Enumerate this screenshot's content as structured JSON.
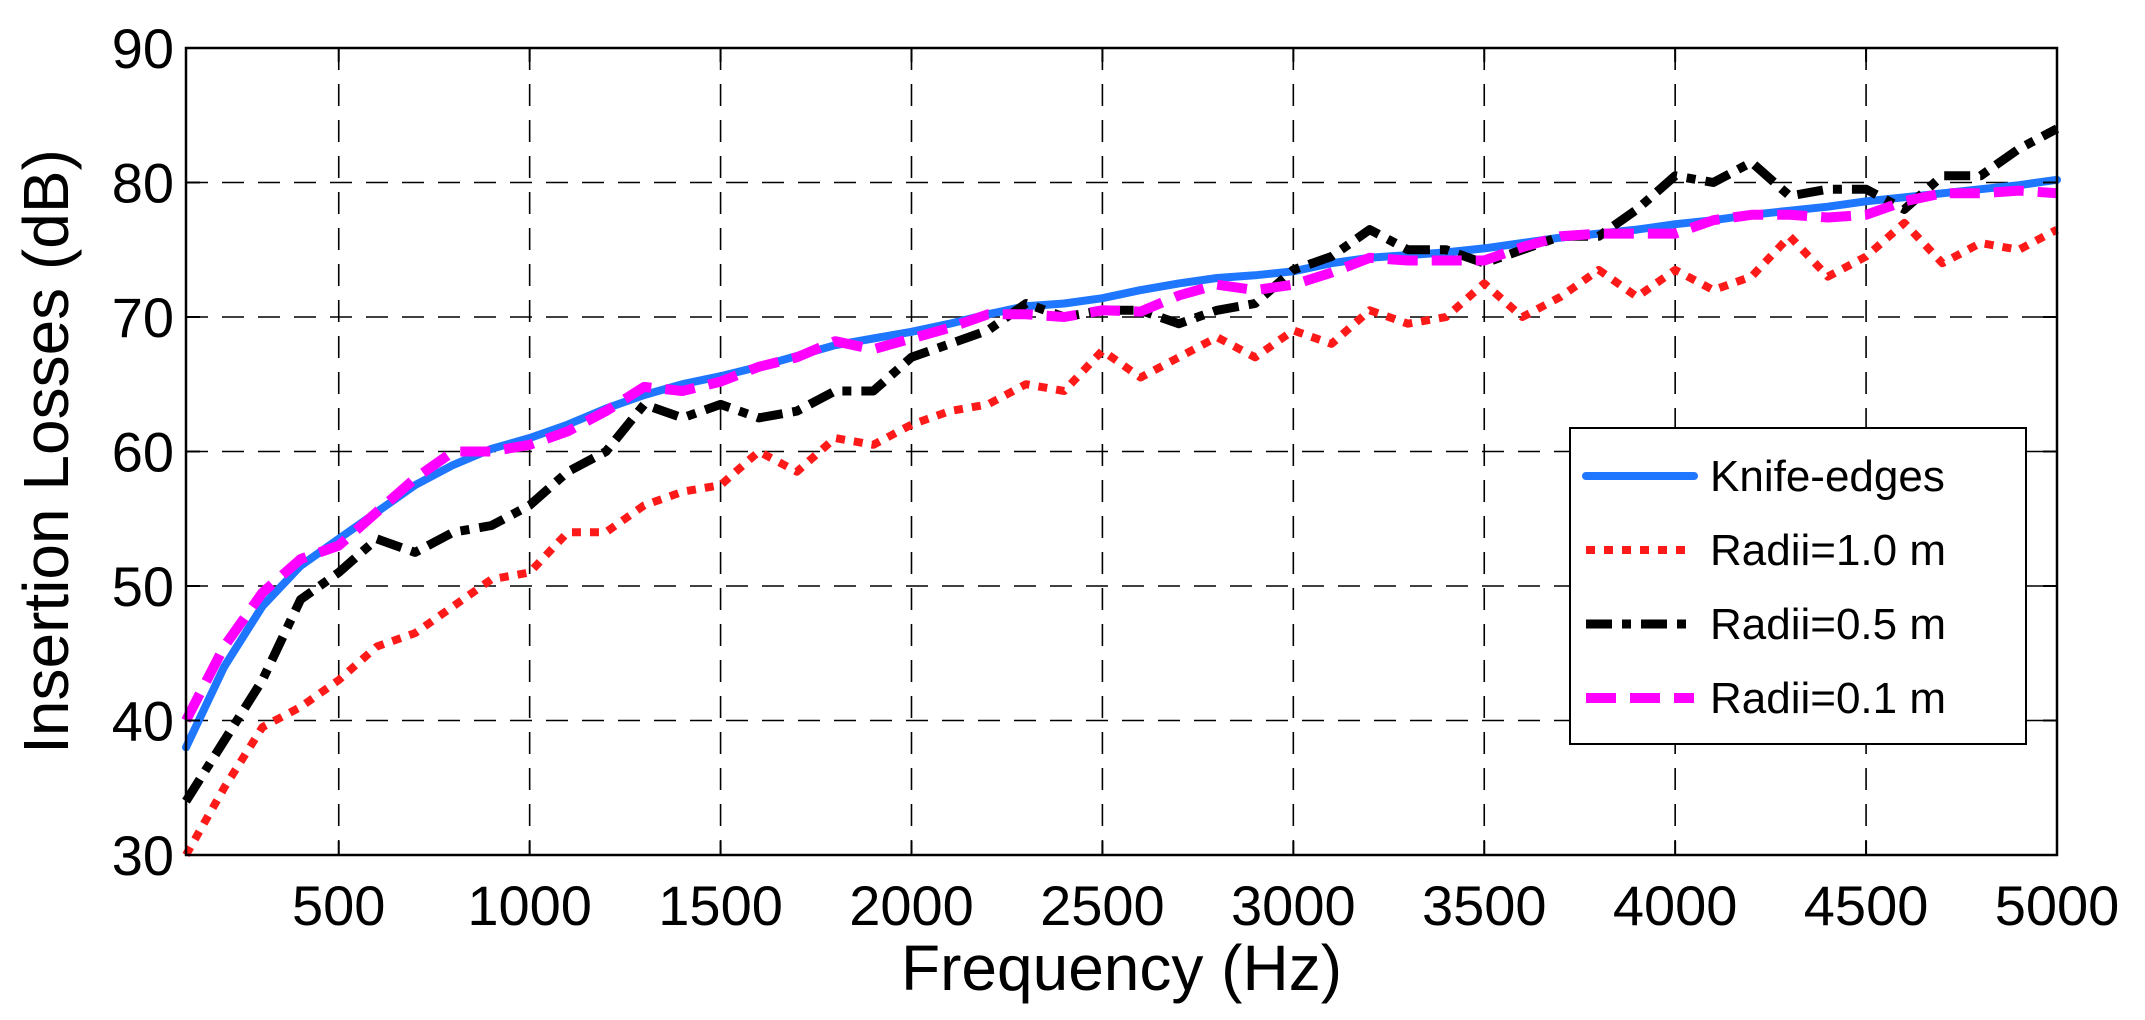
{
  "chart_data": {
    "type": "line",
    "title": "",
    "xlabel": "Frequency (Hz)",
    "ylabel": "Insertion Losses (dB)",
    "xlim": [
      100,
      5000
    ],
    "ylim": [
      30,
      90
    ],
    "xticks": [
      500,
      1000,
      1500,
      2000,
      2500,
      3000,
      3500,
      4000,
      4500,
      5000
    ],
    "yticks": [
      30,
      40,
      50,
      60,
      70,
      80,
      90
    ],
    "grid": true,
    "legend_position": "right",
    "series": [
      {
        "name": "Knife-edges",
        "color": "#1f77ff",
        "style": "solid",
        "x": [
          100,
          200,
          300,
          400,
          500,
          600,
          700,
          800,
          900,
          1000,
          1100,
          1200,
          1300,
          1400,
          1500,
          1600,
          1700,
          1800,
          1900,
          2000,
          2100,
          2200,
          2300,
          2400,
          2500,
          2600,
          2700,
          2800,
          2900,
          3000,
          3100,
          3200,
          3300,
          3400,
          3500,
          3600,
          3700,
          3800,
          3900,
          4000,
          4100,
          4200,
          4300,
          4400,
          4500,
          4600,
          4700,
          4800,
          4900,
          5000
        ],
        "y": [
          38,
          44,
          48.5,
          51.5,
          53.5,
          55.5,
          57.5,
          59,
          60.2,
          61,
          62,
          63.2,
          64.2,
          65,
          65.6,
          66.3,
          67.1,
          67.9,
          68.4,
          68.9,
          69.5,
          70.2,
          70.8,
          71,
          71.4,
          72,
          72.5,
          72.9,
          73.1,
          73.4,
          74,
          74.4,
          74.6,
          74.8,
          75.1,
          75.5,
          75.9,
          76.2,
          76.5,
          76.9,
          77.2,
          77.6,
          77.9,
          78.2,
          78.6,
          78.9,
          79.2,
          79.5,
          79.8,
          80.2
        ]
      },
      {
        "name": "Radii=1.0 m",
        "color": "#ff1a1a",
        "style": "dotted",
        "x": [
          100,
          200,
          300,
          400,
          500,
          600,
          700,
          800,
          900,
          1000,
          1100,
          1200,
          1300,
          1400,
          1500,
          1600,
          1700,
          1800,
          1900,
          2000,
          2100,
          2200,
          2300,
          2400,
          2500,
          2600,
          2700,
          2800,
          2900,
          3000,
          3100,
          3200,
          3300,
          3400,
          3500,
          3600,
          3700,
          3800,
          3900,
          4000,
          4100,
          4200,
          4300,
          4400,
          4500,
          4600,
          4700,
          4800,
          4900,
          5000
        ],
        "y": [
          30,
          35,
          39.5,
          41,
          43,
          45.5,
          46.5,
          48.5,
          50.5,
          51,
          54,
          54,
          56,
          57,
          57.5,
          60,
          58.5,
          61,
          60.5,
          62,
          63,
          63.5,
          65,
          64.5,
          67.5,
          65.5,
          67,
          68.5,
          67,
          69,
          68,
          70.5,
          69.5,
          70,
          72.5,
          70,
          71.5,
          73.5,
          71.5,
          73.5,
          72,
          73,
          76,
          73,
          74.5,
          77,
          74,
          75.5,
          75,
          76.5
        ]
      },
      {
        "name": "Radii=0.5 m",
        "color": "#000000",
        "style": "dashdot",
        "x": [
          100,
          200,
          300,
          400,
          500,
          600,
          700,
          800,
          900,
          1000,
          1100,
          1200,
          1300,
          1400,
          1500,
          1600,
          1700,
          1800,
          1900,
          2000,
          2100,
          2200,
          2300,
          2400,
          2500,
          2600,
          2700,
          2800,
          2900,
          3000,
          3100,
          3200,
          3300,
          3400,
          3500,
          3600,
          3700,
          3800,
          3900,
          4000,
          4100,
          4200,
          4300,
          4400,
          4500,
          4600,
          4700,
          4800,
          4900,
          5000
        ],
        "y": [
          34,
          38.5,
          43,
          49,
          51,
          53.5,
          52.5,
          54,
          54.5,
          56,
          58.5,
          60,
          63.5,
          62.5,
          63.5,
          62.5,
          63,
          64.5,
          64.5,
          67,
          68,
          69,
          71,
          70,
          70.5,
          70.5,
          69.5,
          70.5,
          71,
          73.5,
          74.5,
          76.5,
          75,
          75,
          74,
          75,
          76,
          76,
          78,
          80.5,
          80,
          81.5,
          79,
          79.5,
          79.5,
          78,
          80.5,
          80.5,
          82.5,
          84
        ]
      },
      {
        "name": "Radii=0.1 m",
        "color": "#ff00ff",
        "style": "dashed",
        "x": [
          100,
          200,
          300,
          400,
          500,
          600,
          700,
          800,
          900,
          1000,
          1100,
          1200,
          1300,
          1400,
          1500,
          1600,
          1700,
          1800,
          1900,
          2000,
          2100,
          2200,
          2300,
          2400,
          2500,
          2600,
          2700,
          2800,
          2900,
          3000,
          3100,
          3200,
          3300,
          3400,
          3500,
          3600,
          3700,
          3800,
          3900,
          4000,
          4100,
          4200,
          4300,
          4400,
          4500,
          4600,
          4700,
          4800,
          4900,
          5000
        ],
        "y": [
          40,
          45.5,
          49.5,
          52,
          53,
          55.5,
          58,
          60,
          60,
          60.5,
          61.5,
          63,
          64.8,
          64.5,
          65.2,
          66.3,
          67,
          68.2,
          67.6,
          68.4,
          69.2,
          70.2,
          70.2,
          70,
          70.5,
          70.4,
          71.6,
          72.4,
          72,
          72.4,
          73.3,
          74.4,
          74.2,
          74.2,
          74.2,
          75.2,
          76,
          76.2,
          76.2,
          76.2,
          77.2,
          77.6,
          77.6,
          77.4,
          77.6,
          78.6,
          79.2,
          79.2,
          79.4,
          79.2
        ]
      }
    ]
  }
}
